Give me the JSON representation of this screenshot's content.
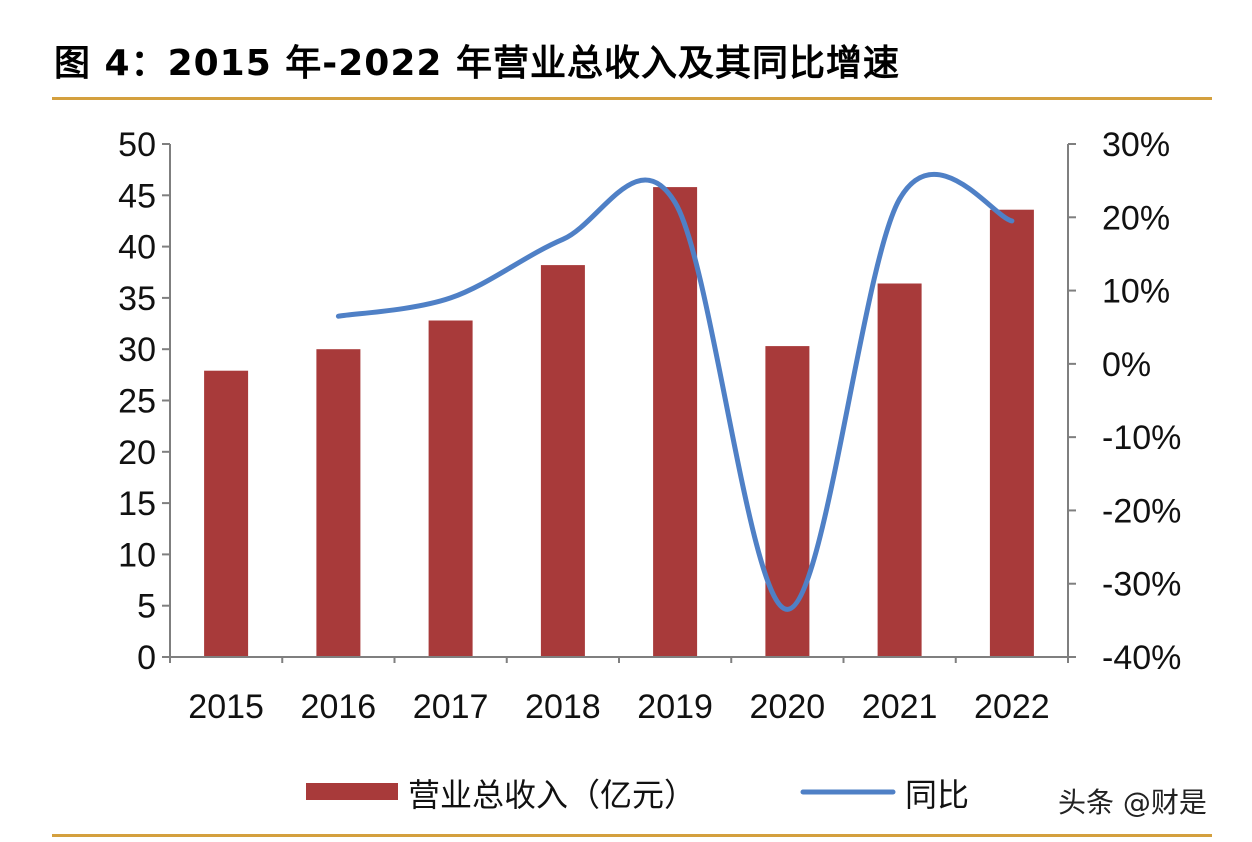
{
  "header": {
    "title": "图 4：2015 年-2022 年营业总收入及其同比增速"
  },
  "watermark": "头条 @财是",
  "colors": {
    "bar": "#A83A3A",
    "line": "#4F80C6",
    "rule": "#D4A03E",
    "axis": "#7F7F7F"
  },
  "chart_data": {
    "type": "bar",
    "title": "2015 年-2022 年营业总收入及其同比增速",
    "categories": [
      "2015",
      "2016",
      "2017",
      "2018",
      "2019",
      "2020",
      "2021",
      "2022"
    ],
    "series": [
      {
        "name": "营业总收入（亿元）",
        "type": "bar",
        "axis": "left",
        "values": [
          27.9,
          30.0,
          32.8,
          38.2,
          45.8,
          30.3,
          36.4,
          43.6
        ]
      },
      {
        "name": "同比",
        "type": "line",
        "axis": "right",
        "values": [
          null,
          6.5,
          9.0,
          17.0,
          22.0,
          -33.5,
          22.5,
          19.5
        ]
      }
    ],
    "yleft": {
      "ylim": [
        0,
        50
      ],
      "ticks": [
        "0",
        "5",
        "10",
        "15",
        "20",
        "25",
        "30",
        "35",
        "40",
        "45",
        "50"
      ]
    },
    "yright": {
      "ylim": [
        -40,
        30
      ],
      "ticks": [
        "-40%",
        "-30%",
        "-20%",
        "-10%",
        "0%",
        "10%",
        "20%",
        "30%"
      ]
    },
    "legend": {
      "position": "bottom",
      "entries": [
        "营业总收入（亿元）",
        "同比"
      ]
    },
    "grid": false
  }
}
